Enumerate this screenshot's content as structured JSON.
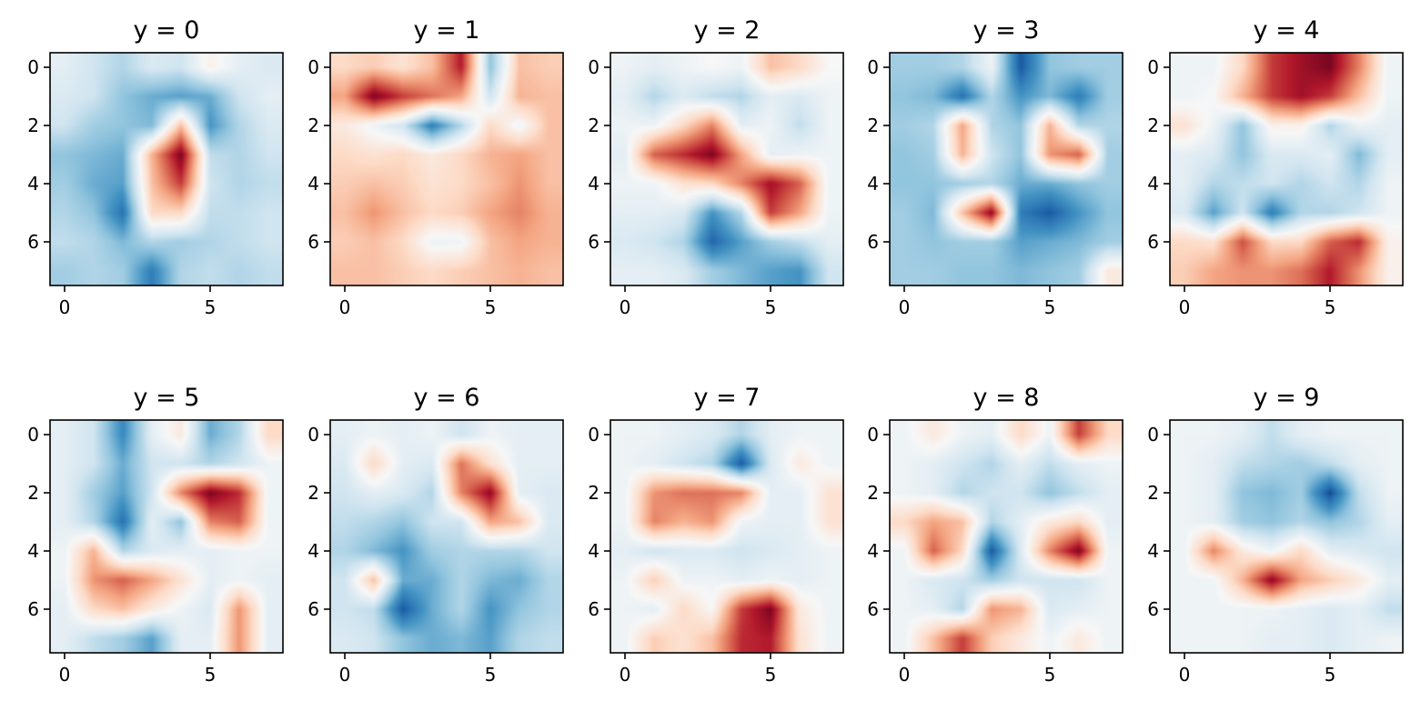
{
  "colormap": "RdBu_r",
  "colormap_stops": [
    "#053061",
    "#2166ac",
    "#4393c3",
    "#92c5de",
    "#d1e5f0",
    "#f7f7f7",
    "#fddbc7",
    "#f4a582",
    "#d6604d",
    "#b2182b",
    "#67001f"
  ],
  "value_range": [
    -1,
    1
  ],
  "chart_data": [
    {
      "type": "heatmap",
      "title": "y = 0",
      "x_ticks": [
        "0",
        "5"
      ],
      "y_ticks": [
        "0",
        "2",
        "4",
        "6"
      ],
      "xlim": [
        -0.5,
        7.5
      ],
      "ylim": [
        7.5,
        -0.5
      ],
      "values": [
        [
          -0.1,
          -0.2,
          -0.3,
          -0.15,
          -0.2,
          0.05,
          -0.1,
          -0.15
        ],
        [
          -0.15,
          -0.2,
          -0.4,
          -0.5,
          -0.55,
          -0.5,
          -0.2,
          -0.1
        ],
        [
          -0.2,
          -0.35,
          -0.4,
          -0.45,
          0.3,
          -0.6,
          -0.3,
          -0.15
        ],
        [
          -0.4,
          -0.45,
          -0.5,
          0.35,
          0.95,
          -0.25,
          -0.3,
          -0.2
        ],
        [
          -0.35,
          -0.5,
          -0.55,
          0.3,
          0.7,
          -0.2,
          -0.3,
          -0.25
        ],
        [
          -0.3,
          -0.4,
          -0.75,
          0.2,
          0.2,
          -0.25,
          -0.25,
          -0.2
        ],
        [
          -0.25,
          -0.3,
          -0.45,
          -0.3,
          -0.35,
          -0.3,
          -0.25,
          -0.2
        ],
        [
          -0.35,
          -0.3,
          -0.35,
          -0.7,
          -0.3,
          -0.25,
          -0.3,
          -0.25
        ]
      ]
    },
    {
      "type": "heatmap",
      "title": "y = 1",
      "x_ticks": [
        "0",
        "5"
      ],
      "y_ticks": [
        "0",
        "2",
        "4",
        "6"
      ],
      "xlim": [
        -0.5,
        7.5
      ],
      "ylim": [
        7.5,
        -0.5
      ],
      "values": [
        [
          0.2,
          0.25,
          0.15,
          0.3,
          0.8,
          -0.4,
          0.3,
          0.25
        ],
        [
          0.4,
          0.95,
          0.7,
          0.55,
          0.4,
          -0.2,
          0.35,
          0.3
        ],
        [
          0.1,
          -0.05,
          -0.2,
          -0.7,
          -0.3,
          0.2,
          -0.05,
          0.3
        ],
        [
          0.2,
          0.15,
          0.2,
          0.1,
          0.2,
          0.35,
          0.4,
          0.3
        ],
        [
          0.25,
          0.3,
          0.25,
          0.15,
          0.2,
          0.3,
          0.45,
          0.3
        ],
        [
          0.3,
          0.45,
          0.3,
          0.2,
          0.25,
          0.4,
          0.5,
          0.35
        ],
        [
          0.25,
          0.3,
          0.2,
          -0.05,
          -0.05,
          0.3,
          0.4,
          0.35
        ],
        [
          0.3,
          0.3,
          0.25,
          0.2,
          0.25,
          0.3,
          0.35,
          0.3
        ]
      ]
    },
    {
      "type": "heatmap",
      "title": "y = 2",
      "x_ticks": [
        "0",
        "5"
      ],
      "y_ticks": [
        "0",
        "2",
        "4",
        "6"
      ],
      "xlim": [
        -0.5,
        7.5
      ],
      "ylim": [
        7.5,
        -0.5
      ],
      "values": [
        [
          -0.05,
          -0.1,
          -0.05,
          0.0,
          -0.05,
          0.3,
          0.2,
          0.0
        ],
        [
          -0.1,
          -0.3,
          -0.15,
          -0.25,
          -0.3,
          -0.1,
          -0.15,
          -0.05
        ],
        [
          -0.05,
          -0.05,
          0.2,
          0.5,
          -0.1,
          -0.05,
          -0.25,
          -0.05
        ],
        [
          -0.1,
          0.6,
          0.75,
          0.95,
          0.4,
          -0.1,
          -0.05,
          -0.05
        ],
        [
          -0.05,
          -0.05,
          0.15,
          0.2,
          0.5,
          0.85,
          0.6,
          -0.05
        ],
        [
          -0.1,
          -0.1,
          -0.15,
          -0.6,
          -0.3,
          0.7,
          0.4,
          -0.05
        ],
        [
          -0.15,
          -0.2,
          -0.3,
          -0.8,
          -0.55,
          -0.35,
          -0.25,
          -0.1
        ],
        [
          -0.1,
          -0.1,
          -0.15,
          -0.35,
          -0.45,
          -0.55,
          -0.6,
          -0.2
        ]
      ]
    },
    {
      "type": "heatmap",
      "title": "y = 3",
      "x_ticks": [
        "0",
        "5"
      ],
      "y_ticks": [
        "0",
        "2",
        "4",
        "6"
      ],
      "xlim": [
        -0.5,
        7.5
      ],
      "ylim": [
        7.5,
        -0.5
      ],
      "values": [
        [
          -0.35,
          -0.35,
          -0.3,
          -0.05,
          -0.85,
          -0.4,
          -0.35,
          -0.35
        ],
        [
          -0.4,
          -0.45,
          -0.75,
          -0.3,
          -0.6,
          -0.45,
          -0.7,
          -0.35
        ],
        [
          -0.35,
          -0.3,
          0.4,
          -0.3,
          -0.4,
          0.35,
          -0.3,
          -0.3
        ],
        [
          -0.4,
          -0.35,
          0.35,
          -0.2,
          -0.4,
          0.45,
          0.6,
          -0.35
        ],
        [
          -0.4,
          -0.4,
          -0.35,
          -0.3,
          -0.5,
          -0.5,
          -0.4,
          -0.35
        ],
        [
          -0.35,
          -0.45,
          0.3,
          0.9,
          -0.7,
          -0.85,
          -0.6,
          -0.4
        ],
        [
          -0.35,
          -0.4,
          -0.35,
          -0.35,
          -0.55,
          -0.5,
          -0.45,
          -0.35
        ],
        [
          -0.35,
          -0.35,
          -0.4,
          -0.4,
          -0.45,
          -0.4,
          -0.35,
          0.1
        ]
      ]
    },
    {
      "type": "heatmap",
      "title": "y = 4",
      "x_ticks": [
        "0",
        "5"
      ],
      "y_ticks": [
        "0",
        "2",
        "4",
        "6"
      ],
      "xlim": [
        -0.5,
        7.5
      ],
      "ylim": [
        7.5,
        -0.5
      ],
      "values": [
        [
          -0.05,
          -0.05,
          0.2,
          0.7,
          0.85,
          0.95,
          0.5,
          -0.05
        ],
        [
          -0.05,
          0.0,
          0.35,
          0.7,
          0.85,
          0.7,
          0.3,
          -0.05
        ],
        [
          0.15,
          -0.05,
          -0.4,
          0.05,
          0.05,
          -0.3,
          -0.05,
          -0.1
        ],
        [
          -0.1,
          -0.15,
          -0.4,
          -0.15,
          -0.15,
          -0.1,
          -0.45,
          -0.1
        ],
        [
          -0.1,
          -0.3,
          -0.25,
          -0.2,
          -0.3,
          -0.2,
          -0.3,
          -0.05
        ],
        [
          -0.15,
          -0.55,
          -0.2,
          -0.7,
          -0.3,
          -0.3,
          -0.2,
          -0.05
        ],
        [
          0.2,
          0.15,
          0.65,
          0.2,
          0.2,
          0.6,
          0.75,
          0.05
        ],
        [
          0.25,
          0.4,
          0.45,
          0.45,
          0.55,
          0.8,
          0.45,
          0.05
        ]
      ]
    },
    {
      "type": "heatmap",
      "title": "y = 5",
      "x_ticks": [
        "0",
        "5"
      ],
      "y_ticks": [
        "0",
        "2",
        "4",
        "6"
      ],
      "xlim": [
        -0.5,
        7.5
      ],
      "ylim": [
        7.5,
        -0.5
      ],
      "values": [
        [
          -0.1,
          -0.2,
          -0.65,
          -0.1,
          0.1,
          -0.5,
          -0.3,
          0.2
        ],
        [
          -0.1,
          -0.2,
          -0.5,
          -0.2,
          -0.2,
          -0.3,
          -0.2,
          -0.05
        ],
        [
          -0.1,
          -0.35,
          -0.55,
          -0.2,
          0.5,
          0.95,
          0.75,
          -0.05
        ],
        [
          -0.1,
          -0.3,
          -0.75,
          -0.1,
          -0.4,
          0.5,
          0.6,
          -0.05
        ],
        [
          -0.05,
          0.35,
          -0.3,
          -0.15,
          -0.1,
          -0.1,
          -0.05,
          -0.05
        ],
        [
          -0.05,
          0.45,
          0.6,
          0.4,
          0.15,
          -0.1,
          -0.05,
          -0.1
        ],
        [
          -0.1,
          0.2,
          0.3,
          0.1,
          -0.05,
          -0.15,
          0.45,
          -0.1
        ],
        [
          -0.1,
          -0.25,
          -0.35,
          -0.55,
          -0.1,
          -0.1,
          0.45,
          -0.1
        ]
      ]
    },
    {
      "type": "heatmap",
      "title": "y = 6",
      "x_ticks": [
        "0",
        "5"
      ],
      "y_ticks": [
        "0",
        "2",
        "4",
        "6"
      ],
      "xlim": [
        -0.5,
        7.5
      ],
      "ylim": [
        7.5,
        -0.5
      ],
      "values": [
        [
          -0.1,
          -0.05,
          -0.1,
          -0.05,
          -0.2,
          -0.05,
          -0.1,
          -0.1
        ],
        [
          -0.15,
          0.2,
          -0.1,
          -0.15,
          0.55,
          0.15,
          -0.1,
          -0.1
        ],
        [
          -0.2,
          -0.1,
          -0.15,
          -0.3,
          0.5,
          0.9,
          -0.1,
          -0.15
        ],
        [
          -0.25,
          -0.3,
          -0.4,
          -0.2,
          -0.2,
          0.4,
          0.3,
          -0.15
        ],
        [
          -0.3,
          -0.45,
          -0.6,
          -0.35,
          -0.3,
          -0.3,
          -0.3,
          -0.2
        ],
        [
          -0.2,
          0.3,
          -0.5,
          -0.5,
          -0.3,
          -0.45,
          -0.5,
          -0.3
        ],
        [
          -0.2,
          -0.25,
          -0.85,
          -0.5,
          -0.3,
          -0.6,
          -0.4,
          -0.3
        ],
        [
          -0.15,
          -0.2,
          -0.4,
          -0.5,
          -0.45,
          -0.55,
          -0.3,
          -0.25
        ]
      ]
    },
    {
      "type": "heatmap",
      "title": "y = 7",
      "x_ticks": [
        "0",
        "5"
      ],
      "y_ticks": [
        "0",
        "2",
        "4",
        "6"
      ],
      "xlim": [
        -0.5,
        7.5
      ],
      "ylim": [
        7.5,
        -0.5
      ],
      "values": [
        [
          -0.05,
          -0.05,
          -0.1,
          -0.15,
          -0.3,
          -0.1,
          -0.05,
          -0.05
        ],
        [
          -0.05,
          -0.1,
          -0.2,
          -0.3,
          -0.85,
          -0.15,
          0.1,
          -0.05
        ],
        [
          -0.05,
          0.45,
          0.55,
          0.55,
          0.5,
          -0.1,
          -0.1,
          0.15
        ],
        [
          -0.05,
          0.5,
          0.35,
          0.45,
          -0.05,
          -0.1,
          -0.1,
          0.15
        ],
        [
          -0.1,
          -0.2,
          -0.15,
          -0.15,
          -0.2,
          -0.15,
          -0.1,
          -0.05
        ],
        [
          -0.05,
          0.25,
          -0.05,
          -0.05,
          -0.1,
          -0.05,
          -0.1,
          -0.05
        ],
        [
          -0.05,
          -0.1,
          0.2,
          0.0,
          0.7,
          0.95,
          0.1,
          -0.05
        ],
        [
          -0.05,
          0.25,
          0.15,
          0.3,
          0.75,
          0.8,
          0.15,
          -0.05
        ]
      ]
    },
    {
      "type": "heatmap",
      "title": "y = 8",
      "x_ticks": [
        "0",
        "5"
      ],
      "y_ticks": [
        "0",
        "2",
        "4",
        "6"
      ],
      "xlim": [
        -0.5,
        7.5
      ],
      "ylim": [
        7.5,
        -0.5
      ],
      "values": [
        [
          -0.05,
          0.1,
          -0.05,
          -0.1,
          0.2,
          -0.05,
          0.7,
          0.2
        ],
        [
          -0.05,
          -0.1,
          -0.2,
          -0.3,
          -0.1,
          -0.25,
          -0.1,
          -0.05
        ],
        [
          -0.05,
          -0.1,
          -0.3,
          -0.2,
          -0.2,
          -0.4,
          -0.25,
          -0.1
        ],
        [
          0.2,
          0.4,
          0.3,
          -0.3,
          -0.1,
          0.1,
          0.2,
          -0.1
        ],
        [
          -0.05,
          0.6,
          0.2,
          -0.85,
          -0.15,
          0.5,
          0.95,
          -0.05
        ],
        [
          -0.05,
          -0.15,
          -0.2,
          -0.35,
          -0.2,
          -0.2,
          -0.2,
          -0.05
        ],
        [
          -0.05,
          -0.1,
          -0.3,
          0.45,
          0.35,
          -0.15,
          -0.1,
          -0.05
        ],
        [
          -0.05,
          0.3,
          0.7,
          0.25,
          0.1,
          -0.05,
          0.1,
          -0.05
        ]
      ]
    },
    {
      "type": "heatmap",
      "title": "y = 9",
      "x_ticks": [
        "0",
        "5"
      ],
      "y_ticks": [
        "0",
        "2",
        "4",
        "6"
      ],
      "xlim": [
        -0.5,
        7.5
      ],
      "ylim": [
        7.5,
        -0.5
      ],
      "values": [
        [
          -0.05,
          -0.05,
          -0.1,
          -0.25,
          -0.1,
          -0.05,
          -0.05,
          -0.05
        ],
        [
          -0.05,
          -0.1,
          -0.25,
          -0.3,
          -0.35,
          -0.25,
          -0.1,
          -0.05
        ],
        [
          -0.05,
          -0.1,
          -0.4,
          -0.45,
          -0.35,
          -0.9,
          -0.25,
          -0.05
        ],
        [
          -0.05,
          -0.1,
          -0.35,
          -0.4,
          -0.3,
          -0.4,
          -0.3,
          -0.1
        ],
        [
          -0.05,
          0.5,
          0.1,
          -0.05,
          0.2,
          -0.1,
          -0.15,
          -0.2
        ],
        [
          -0.05,
          -0.05,
          0.35,
          0.9,
          0.4,
          0.25,
          0.1,
          -0.1
        ],
        [
          -0.05,
          -0.05,
          -0.05,
          -0.05,
          -0.1,
          -0.15,
          -0.1,
          -0.25
        ],
        [
          -0.05,
          -0.05,
          -0.05,
          -0.1,
          -0.1,
          -0.15,
          -0.1,
          -0.05
        ]
      ]
    }
  ]
}
